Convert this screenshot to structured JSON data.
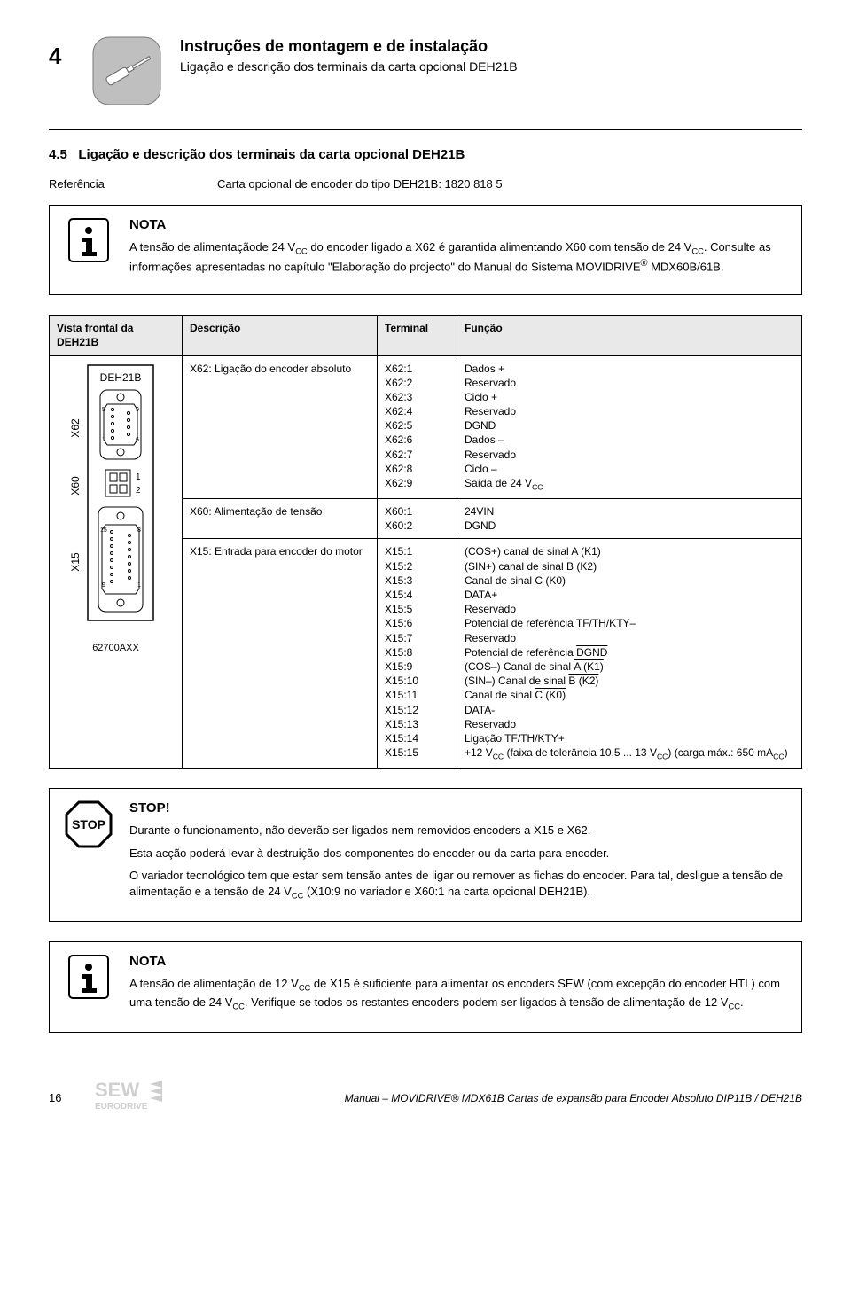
{
  "section_number": "4",
  "header": {
    "title": "Instruções de montagem e de instalação",
    "subtitle": "Ligação e descrição dos terminais da carta opcional DEH21B"
  },
  "subsection": {
    "number": "4.5",
    "title": "Ligação e descrição dos terminais da carta opcional DEH21B"
  },
  "reference": {
    "label": "Referência",
    "text": "Carta opcional de encoder do tipo DEH21B: 1820 818 5"
  },
  "nota1": {
    "heading": "NOTA",
    "body_html": "A tensão de alimentaçãode 24 V<sub>CC</sub> do encoder ligado a X62 é garantida alimentando X60 com tensão de 24 V<sub>CC</sub>. Consulte as informações apresentadas no capítulo \"Elaboração do projecto\" do Manual do Sistema MOVIDRIVE<sup>®</sup> MDX60B/61B."
  },
  "table": {
    "headers": {
      "fig": "Vista frontal da DEH21B",
      "desc": "Descrição",
      "term": "Terminal",
      "func": "Função"
    },
    "board_label": "DEH21B",
    "board_caption": "62700AXX",
    "connectors": {
      "x62": "X62",
      "x60": "X60",
      "x15": "X15",
      "x60_pins": [
        "1",
        "2"
      ]
    },
    "rows": [
      {
        "desc": "X62: Ligação do encoder absoluto",
        "terms": [
          "X62:1",
          "X62:2",
          "X62:3",
          "X62:4",
          "X62:5",
          "X62:6",
          "X62:7",
          "X62:8",
          "X62:9"
        ],
        "funcs_html": [
          "Dados +",
          "Reservado",
          "Ciclo +",
          "Reservado",
          "DGND",
          "Dados –",
          "Reservado",
          "Ciclo –",
          "Saída de 24 V<sub>CC</sub>"
        ]
      },
      {
        "desc": "X60: Alimentação de tensão",
        "terms": [
          "X60:1",
          "X60:2"
        ],
        "funcs_html": [
          "24VIN",
          "DGND"
        ]
      },
      {
        "desc": "X15: Entrada para encoder do motor",
        "terms": [
          "X15:1",
          "X15:2",
          "X15:3",
          "X15:4",
          "X15:5",
          "X15:6",
          "X15:7",
          "X15:8",
          "X15:9",
          "X15:10",
          "X15:11",
          "X15:12",
          "X15:13",
          "X15:14",
          "X15:15"
        ],
        "funcs_html": [
          "(COS+) canal de sinal A (K1)",
          "(SIN+) canal de sinal B (K2)",
          "Canal de sinal C (K0)",
          "DATA+",
          "Reservado",
          "Potencial de referência TF/TH/KTY–",
          "Reservado",
          "Potencial de referência <span class=\"overline\">DGND</span>",
          "(COS–) Canal de sinal <span class=\"overline\">A (K1)</span>",
          "(SIN–) Canal de sinal <span class=\"overline\">B (K2)</span>",
          "Canal de sinal <span class=\"overline\">C (K0)</span>",
          "DATA-",
          "Reservado",
          "Ligação TF/TH/KTY+",
          "+12 V<sub>CC</sub> (faixa de tolerância 10,5 ... 13 V<sub>CC</sub>) (carga máx.: 650 mA<sub>CC</sub>)"
        ]
      }
    ]
  },
  "stop": {
    "heading": "STOP!",
    "p1": "Durante o funcionamento, não deverão ser ligados nem removidos encoders a X15 e X62.",
    "p2": "Esta acção poderá levar à destruição dos componentes do encoder ou da carta para encoder.",
    "p3_html": "O variador tecnológico tem que estar sem tensão antes de ligar ou remover as fichas do encoder. Para tal, desligue a tensão de alimentação e a tensão de 24 V<sub>CC</sub> (X10:9 no variador e X60:1 na carta opcional DEH21B)."
  },
  "nota2": {
    "heading": "NOTA",
    "body_html": "A tensão de alimentação de 12 V<sub>CC</sub> de X15 é suficiente para alimentar os encoders SEW (com excepção do encoder HTL) com uma tensão de 24 V<sub>CC</sub>. Verifique se todos os restantes encoders podem ser ligados à tensão de alimentação de 12 V<sub>CC</sub>."
  },
  "footer": {
    "page": "16",
    "brand_top": "SEW",
    "brand_bottom": "EURODRIVE",
    "title": "Manual – MOVIDRIVE® MDX61B Cartas de expansão para Encoder Absoluto DIP11B / DEH21B"
  },
  "colors": {
    "gray_fill": "#bfbfbf",
    "light_gray": "#e9e9e9",
    "stop_red": "#d40000"
  }
}
